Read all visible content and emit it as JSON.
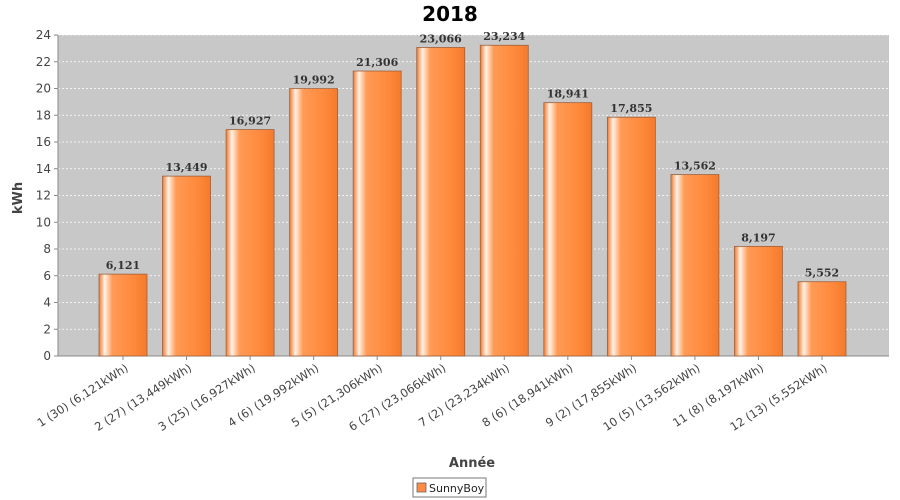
{
  "chart_data": {
    "type": "bar",
    "title": "2018",
    "xlabel": "Année",
    "ylabel": "kWh",
    "ylim": [
      0,
      24
    ],
    "yticks": [
      0,
      2,
      4,
      6,
      8,
      10,
      12,
      14,
      16,
      18,
      20,
      22,
      24
    ],
    "grid": true,
    "legend_position": "bottom-center",
    "categories": [
      "1 (30)  (6,121kWh)",
      "2 (27)  (13,449kWh)",
      "3 (25)  (16,927kWh)",
      "4 (6)  (19,992kWh)",
      "5 (5)  (21,306kWh)",
      "6 (27)  (23,066kWh)",
      "7 (2)  (23,234kWh)",
      "8 (6)  (18,941kWh)",
      "9 (2)  (17,855kWh)",
      "10 (5)  (13,562kWh)",
      "11 (8)  (8,197kWh)",
      "12 (13)  (5,552kWh)"
    ],
    "series": [
      {
        "name": "SunnyBoy",
        "color": "#ff8c42",
        "values": [
          6.121,
          13.449,
          16.927,
          19.992,
          21.306,
          23.066,
          23.234,
          18.941,
          17.855,
          13.562,
          8.197,
          5.552
        ],
        "labels": [
          "6,121",
          "13,449",
          "16,927",
          "19,992",
          "21,306",
          "23,066",
          "23,234",
          "18,941",
          "17,855",
          "13,562",
          "8,197",
          "5,552"
        ]
      }
    ]
  }
}
